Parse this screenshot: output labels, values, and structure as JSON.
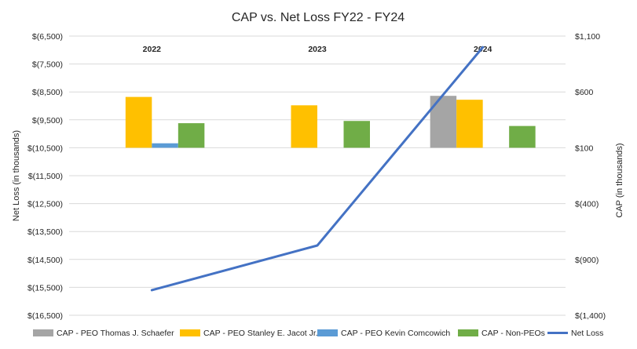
{
  "chart_data": {
    "type": "bar+line",
    "title": "CAP vs. Net Loss FY22 - FY24",
    "categories": [
      "2022",
      "2023",
      "2024"
    ],
    "left_axis": {
      "label": "Net Loss (in thousands)",
      "range": [
        -16500,
        -6500
      ],
      "ticks": [
        -6500,
        -7500,
        -8500,
        -9500,
        -10500,
        -11500,
        -12500,
        -13500,
        -14500,
        -15500,
        -16500
      ],
      "tick_labels": [
        "$(6,500)",
        "$(7,500)",
        "$(8,500)",
        "$(9,500)",
        "$(10,500)",
        "$(11,500)",
        "$(12,500)",
        "$(13,500)",
        "$(14,500)",
        "$(15,500)",
        "$(16,500)"
      ]
    },
    "right_axis": {
      "label": "CAP (in thousands)",
      "range": [
        -1400,
        1100
      ],
      "ticks": [
        1100,
        600,
        100,
        -400,
        -900,
        -1400
      ],
      "tick_labels": [
        "$1,100",
        "$600",
        "$100",
        "$(400)",
        "$(900)",
        "$(1,400)"
      ]
    },
    "bar_series": [
      {
        "name": "CAP - PEO Thomas J. Schaefer",
        "color": "#A5A5A5",
        "values": [
          null,
          null,
          565
        ]
      },
      {
        "name": "CAP - PEO Stanley E. Jacot Jr.",
        "color": "#FFC000",
        "values": [
          555,
          480,
          530
        ]
      },
      {
        "name": "CAP - PEO Kevin Comcowich",
        "color": "#5B9BD5",
        "values": [
          140,
          null,
          null
        ]
      },
      {
        "name": "CAP - Non-PEOs",
        "color": "#70AD47",
        "values": [
          320,
          340,
          295
        ]
      }
    ],
    "line_series": {
      "name": "Net Loss",
      "color": "#4472C4",
      "axis": "left",
      "values": [
        -15600,
        -14000,
        -6900
      ]
    },
    "legend_position": "bottom"
  }
}
